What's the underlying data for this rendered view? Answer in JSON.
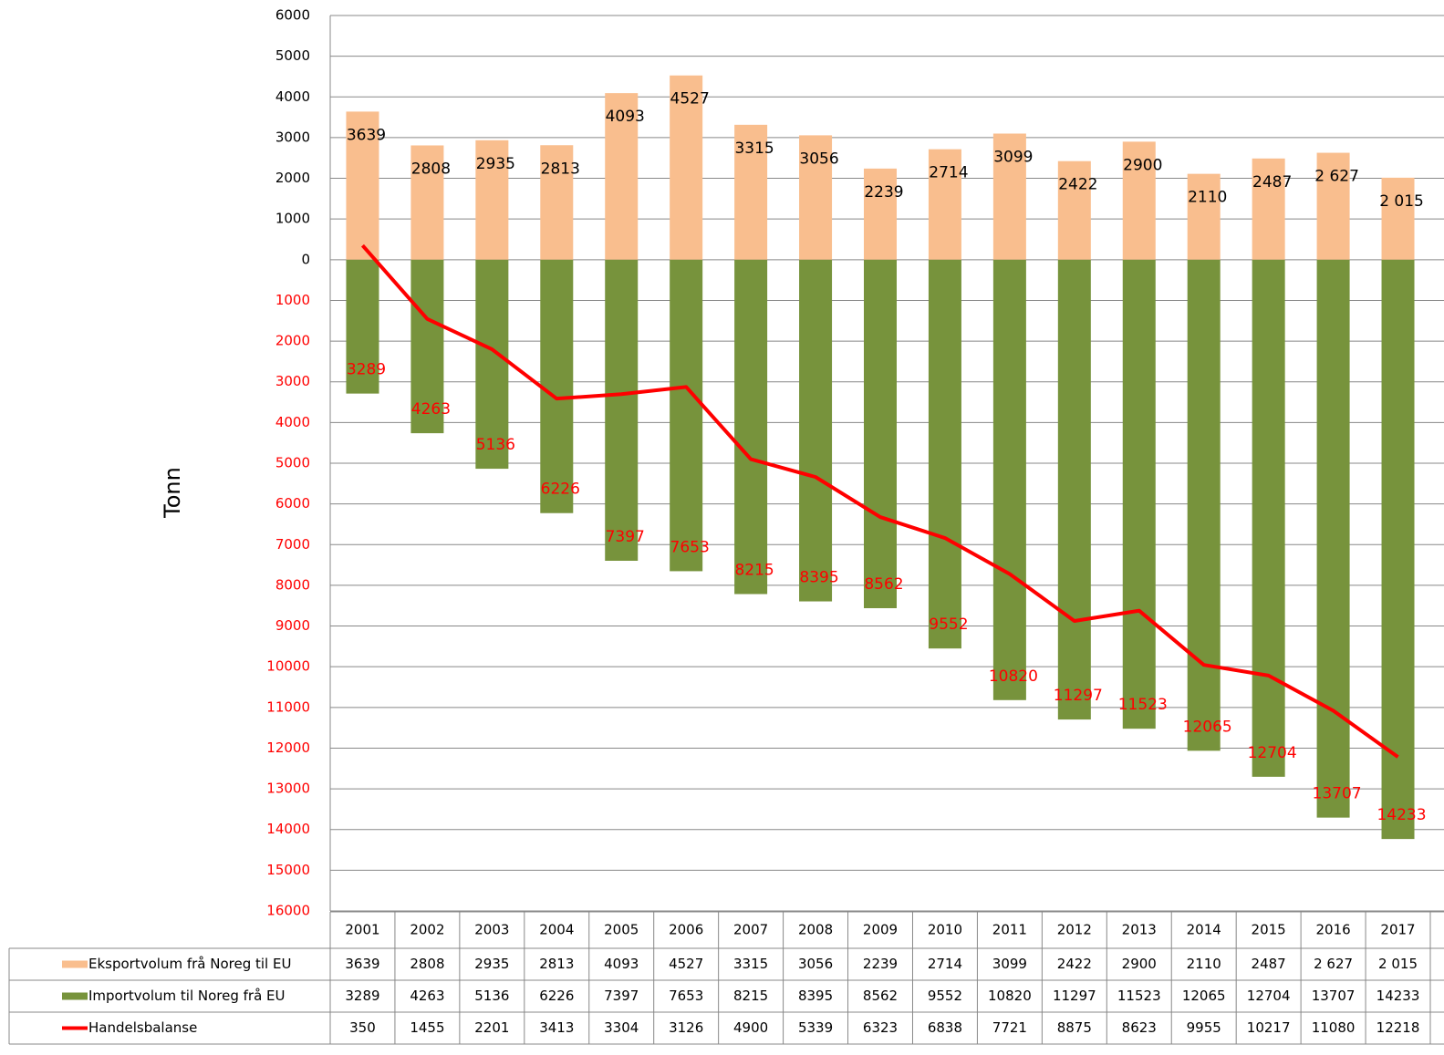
{
  "chart_data": {
    "type": "bar-line",
    "y_label": "Tonn",
    "categories": [
      "2001",
      "2002",
      "2003",
      "2004",
      "2005",
      "2006",
      "2007",
      "2008",
      "2009",
      "2010",
      "2011",
      "2012",
      "2013",
      "2014",
      "2015",
      "2016",
      "2017"
    ],
    "series": [
      {
        "name": "Eksportvolum frå Noreg til EU",
        "kind": "bar",
        "color": "#f9be8e",
        "label_color": "#000000",
        "values": [
          3639,
          2808,
          2935,
          2813,
          4093,
          4527,
          3315,
          3056,
          2239,
          2714,
          3099,
          2422,
          2900,
          2110,
          2487,
          2627,
          2015
        ],
        "value_labels": [
          "3639",
          "2808",
          "2935",
          "2813",
          "4093",
          "4527",
          "3315",
          "3056",
          "2239",
          "2714",
          "3099",
          "2422",
          "2900",
          "2110",
          "2487",
          "2 627",
          "2 015"
        ]
      },
      {
        "name": "Importvolum til Noreg frå EU",
        "kind": "bar",
        "color": "#77933c",
        "label_color": "#ff0000",
        "values": [
          -3289,
          -4263,
          -5136,
          -6226,
          -7397,
          -7653,
          -8215,
          -8395,
          -8562,
          -9552,
          -10820,
          -11297,
          -11523,
          -12065,
          -12704,
          -13707,
          -14233
        ],
        "value_labels": [
          "3289",
          "4263",
          "5136",
          "6226",
          "7397",
          "7653",
          "8215",
          "8395",
          "8562",
          "9552",
          "10820",
          "11297",
          "11523",
          "12065",
          "12704",
          "13707",
          "14233"
        ]
      },
      {
        "name": "Handelsbalanse",
        "kind": "line",
        "color": "#ff0000",
        "values": [
          350,
          -1455,
          -2201,
          -3413,
          -3304,
          -3126,
          -4900,
          -5339,
          -6323,
          -6838,
          -7721,
          -8875,
          -8623,
          -9955,
          -10217,
          -11080,
          -12218
        ],
        "value_labels": [
          "350",
          "1455",
          "2201",
          "3413",
          "3304",
          "3126",
          "4900",
          "5339",
          "6323",
          "6838",
          "7721",
          "8875",
          "8623",
          "9955",
          "10217",
          "11080",
          "12218"
        ]
      }
    ],
    "ylim": [
      -16000,
      6000
    ],
    "yticks": [
      6000,
      5000,
      4000,
      3000,
      2000,
      1000,
      0,
      {
        "value": -1000,
        "label": "1000"
      },
      {
        "value": -2000,
        "label": "2000"
      },
      {
        "value": -3000,
        "label": "3000"
      },
      {
        "value": -4000,
        "label": "4000"
      },
      {
        "value": -5000,
        "label": "5000"
      },
      {
        "value": -6000,
        "label": "6000"
      },
      {
        "value": -7000,
        "label": "7000"
      },
      {
        "value": -8000,
        "label": "8000"
      },
      {
        "value": -9000,
        "label": "9000"
      },
      {
        "value": -10000,
        "label": "10000"
      },
      {
        "value": -11000,
        "label": "11000"
      },
      {
        "value": -12000,
        "label": "12000"
      },
      {
        "value": -13000,
        "label": "13000"
      },
      {
        "value": -14000,
        "label": "14000"
      },
      {
        "value": -15000,
        "label": "15000"
      },
      {
        "value": -16000,
        "label": "16000"
      }
    ],
    "negative_tick_color": "#ff0000",
    "grid": true,
    "data_table": true
  }
}
